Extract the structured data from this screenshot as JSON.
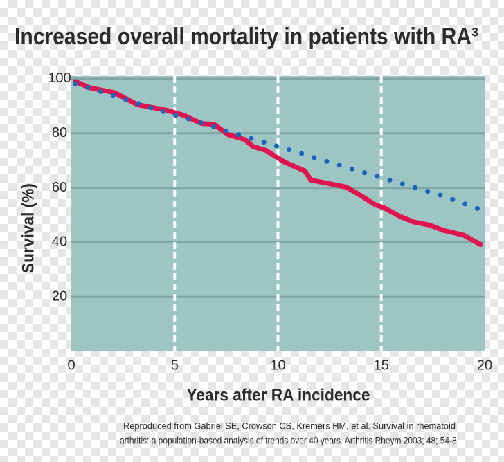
{
  "chart_data": {
    "type": "line",
    "title": "Increased overall mortality in patients with RA³",
    "x_label": "Years after RA incidence",
    "y_label": "Survival (%)",
    "footnote": [
      "Reproduced from Gabriel SE, Crowson CS, Kremers HM, et al. Survival in rhematoid",
      "arthritis: a population-based analysis of trends over 40 years. Arthritis Rheym 2003; 48; 54-8."
    ],
    "xlim": [
      0,
      20
    ],
    "xticks": [
      0,
      5,
      10,
      15,
      20
    ],
    "ylim": [
      0,
      101
    ],
    "yticks": [
      20,
      40,
      60,
      80,
      100
    ],
    "grid": true,
    "series": [
      {
        "color": "#e0134f",
        "style": "solid",
        "x": [
          0.2,
          0.9,
          2.1,
          3.2,
          4.6,
          5.4,
          6.3,
          6.9,
          7.6,
          8.4,
          8.8,
          9.4,
          10.3,
          11.3,
          11.6,
          12.3,
          13.3,
          14,
          14.7,
          15.1,
          15.9,
          16.6,
          17.3,
          18,
          19,
          19.8
        ],
        "values": [
          99,
          96.7,
          94.9,
          90.5,
          88.5,
          86.7,
          83.6,
          83.3,
          79.5,
          77.7,
          75.1,
          73.8,
          69.5,
          66.2,
          62.8,
          61.8,
          60.3,
          57.2,
          53.8,
          52.8,
          49.5,
          47.4,
          46.4,
          44.4,
          42.6,
          39.2
        ]
      },
      {
        "color": "#1565c0",
        "style": "dotted",
        "x": [
          0.2,
          2,
          4,
          6,
          8,
          10,
          12,
          14,
          16,
          18,
          19.8
        ],
        "values": [
          98.2,
          94,
          89,
          84.5,
          79.7,
          75.2,
          70.5,
          66,
          61.5,
          57,
          52
        ]
      }
    ]
  }
}
